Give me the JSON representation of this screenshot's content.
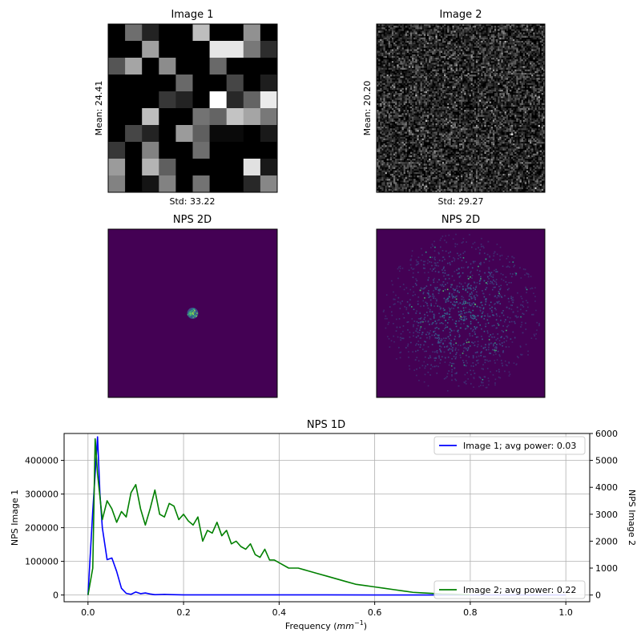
{
  "chart_data": [
    {
      "type": "heatmap",
      "panel": "image-1",
      "title": "Image 1",
      "ylabel": "Mean: 24.41",
      "xlabel": "Std: 33.22",
      "grid_size": 10,
      "colormap": "gray",
      "values": [
        [
          0,
          110,
          35,
          0,
          0,
          190,
          0,
          0,
          145,
          0
        ],
        [
          0,
          0,
          160,
          0,
          0,
          0,
          230,
          230,
          120,
          45
        ],
        [
          85,
          165,
          0,
          140,
          0,
          0,
          105,
          0,
          0,
          0
        ],
        [
          0,
          0,
          0,
          0,
          105,
          0,
          0,
          70,
          0,
          30
        ],
        [
          0,
          0,
          0,
          55,
          35,
          0,
          255,
          40,
          100,
          235
        ],
        [
          0,
          0,
          190,
          0,
          0,
          115,
          100,
          195,
          165,
          120
        ],
        [
          0,
          70,
          35,
          0,
          155,
          95,
          10,
          10,
          0,
          25
        ],
        [
          55,
          0,
          130,
          0,
          0,
          110,
          0,
          0,
          0,
          0
        ],
        [
          155,
          0,
          180,
          95,
          0,
          0,
          0,
          0,
          225,
          25
        ],
        [
          130,
          0,
          20,
          130,
          0,
          115,
          0,
          0,
          40,
          135
        ]
      ]
    },
    {
      "type": "heatmap",
      "panel": "image-2",
      "title": "Image 2",
      "ylabel": "Mean: 20.20",
      "xlabel": "Std: 29.27",
      "grid_size": 100,
      "colormap": "gray",
      "noise_mean": 20.2,
      "noise_std": 29.27
    },
    {
      "type": "heatmap",
      "panel": "nps2d-1",
      "title": "NPS 2D",
      "colormap": "viridis",
      "background": "#440154",
      "spot_radius_fraction": 0.03
    },
    {
      "type": "heatmap",
      "panel": "nps2d-2",
      "title": "NPS 2D",
      "colormap": "viridis",
      "background": "#440154",
      "spread_radius_fraction": 0.45
    },
    {
      "type": "line",
      "panel": "nps1d",
      "title": "NPS 1D",
      "xlabel": "Frequency (mm⁻¹)",
      "xlabel_main": "Frequency (",
      "xlabel_unit": "mm",
      "xlabel_exp": "−1",
      "xlabel_close": ")",
      "ylabel_left": "NPS Image 1",
      "ylabel_right": "NPS Image 2",
      "xlim": [
        -0.05,
        1.05
      ],
      "ylim_left": [
        -20000,
        480000
      ],
      "ylim_right": [
        -250,
        6000
      ],
      "x_ticks": [
        "0.0",
        "0.2",
        "0.4",
        "0.6",
        "0.8",
        "1.0"
      ],
      "y_ticks_left": [
        "0",
        "100000",
        "200000",
        "300000",
        "400000"
      ],
      "y_ticks_right": [
        "0",
        "1000",
        "2000",
        "3000",
        "4000",
        "5000",
        "6000"
      ],
      "grid": true,
      "legend_left_placement": "upper right",
      "legend_right_placement": "lower right",
      "series": [
        {
          "name": "Image 1; avg power: 0.03",
          "axis": "left",
          "color": "#0000ff",
          "x": [
            0.0,
            0.01,
            0.02,
            0.025,
            0.03,
            0.04,
            0.05,
            0.06,
            0.07,
            0.08,
            0.09,
            0.1,
            0.11,
            0.12,
            0.13,
            0.14,
            0.16,
            0.18,
            0.2,
            0.25,
            0.3,
            0.4,
            0.5,
            0.6,
            0.7,
            0.8,
            0.9,
            1.0
          ],
          "y": [
            0,
            250000,
            470000,
            300000,
            200000,
            105000,
            110000,
            70000,
            20000,
            5000,
            2000,
            9000,
            4000,
            6000,
            3000,
            1000,
            2000,
            1000,
            500,
            500,
            500,
            300,
            300,
            200,
            200,
            200,
            200,
            200
          ]
        },
        {
          "name": "Image 2; avg power: 0.22",
          "axis": "right",
          "color": "#008000",
          "x": [
            0.0,
            0.01,
            0.015,
            0.02,
            0.03,
            0.04,
            0.05,
            0.06,
            0.07,
            0.08,
            0.09,
            0.1,
            0.11,
            0.12,
            0.13,
            0.14,
            0.15,
            0.16,
            0.17,
            0.18,
            0.19,
            0.2,
            0.21,
            0.22,
            0.23,
            0.24,
            0.25,
            0.26,
            0.27,
            0.28,
            0.29,
            0.3,
            0.31,
            0.32,
            0.33,
            0.34,
            0.35,
            0.36,
            0.37,
            0.38,
            0.39,
            0.4,
            0.42,
            0.44,
            0.46,
            0.48,
            0.5,
            0.52,
            0.54,
            0.56,
            0.58,
            0.6,
            0.62,
            0.64,
            0.66,
            0.68,
            0.7,
            0.72,
            0.74,
            0.76,
            0.78,
            0.8
          ],
          "y": [
            0,
            1000,
            5800,
            4500,
            2800,
            3500,
            3200,
            2700,
            3100,
            2900,
            3800,
            4100,
            3200,
            2600,
            3200,
            3900,
            3000,
            2900,
            3400,
            3300,
            2800,
            3000,
            2750,
            2600,
            2900,
            2000,
            2400,
            2300,
            2700,
            2200,
            2400,
            1900,
            2000,
            1800,
            1700,
            1900,
            1500,
            1400,
            1700,
            1300,
            1300,
            1200,
            1000,
            1000,
            900,
            800,
            700,
            600,
            500,
            400,
            350,
            300,
            250,
            200,
            150,
            100,
            80,
            60,
            40,
            30,
            20,
            10
          ]
        }
      ]
    }
  ]
}
